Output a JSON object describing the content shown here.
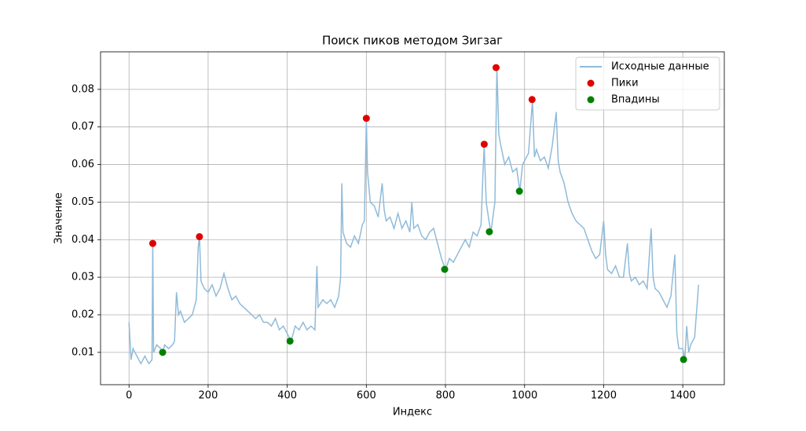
{
  "chart_data": {
    "type": "line",
    "title": "Поиск пиков методом Зигзаг",
    "xlabel": "Индекс",
    "ylabel": "Значение",
    "xlim": [
      -72,
      1505
    ],
    "ylim": [
      0.0014,
      0.09
    ],
    "xticks": [
      0,
      200,
      400,
      600,
      800,
      1000,
      1200,
      1400
    ],
    "yticks": [
      0.01,
      0.02,
      0.03,
      0.04,
      0.05,
      0.06,
      0.07,
      0.08
    ],
    "grid": true,
    "legend": "upper right",
    "series": [
      {
        "name": "Исходные данные",
        "type": "line",
        "color": "#8fbbd9",
        "x": [
          0,
          5,
          10,
          20,
          30,
          40,
          50,
          58,
          60,
          62,
          70,
          80,
          85,
          90,
          100,
          110,
          115,
          120,
          125,
          130,
          140,
          150,
          160,
          170,
          175,
          178,
          182,
          190,
          200,
          210,
          220,
          230,
          240,
          250,
          260,
          270,
          280,
          290,
          300,
          310,
          320,
          330,
          340,
          350,
          360,
          370,
          380,
          390,
          400,
          410,
          420,
          430,
          440,
          450,
          460,
          470,
          475,
          478,
          490,
          500,
          510,
          520,
          530,
          535,
          538,
          541,
          550,
          560,
          570,
          580,
          590,
          595,
          600,
          603,
          610,
          620,
          630,
          640,
          645,
          650,
          660,
          670,
          680,
          690,
          700,
          710,
          715,
          720,
          730,
          740,
          750,
          760,
          770,
          780,
          790,
          800,
          810,
          820,
          830,
          840,
          850,
          860,
          870,
          880,
          890,
          895,
          898,
          903,
          910,
          915,
          920,
          925,
          930,
          935,
          940,
          950,
          960,
          970,
          980,
          988,
          995,
          1000,
          1010,
          1020,
          1025,
          1030,
          1040,
          1050,
          1060,
          1070,
          1080,
          1085,
          1090,
          1100,
          1110,
          1120,
          1130,
          1140,
          1150,
          1160,
          1170,
          1180,
          1190,
          1200,
          1205,
          1210,
          1220,
          1230,
          1240,
          1250,
          1260,
          1265,
          1270,
          1280,
          1290,
          1300,
          1310,
          1320,
          1325,
          1330,
          1340,
          1350,
          1360,
          1370,
          1380,
          1385,
          1390,
          1400,
          1405,
          1410,
          1415,
          1420,
          1430,
          1440
        ],
        "values": [
          0.018,
          0.008,
          0.011,
          0.009,
          0.007,
          0.009,
          0.007,
          0.008,
          0.039,
          0.01,
          0.012,
          0.011,
          0.01,
          0.012,
          0.011,
          0.012,
          0.013,
          0.026,
          0.02,
          0.021,
          0.018,
          0.019,
          0.02,
          0.024,
          0.038,
          0.041,
          0.029,
          0.027,
          0.026,
          0.028,
          0.025,
          0.027,
          0.031,
          0.027,
          0.024,
          0.025,
          0.023,
          0.022,
          0.021,
          0.02,
          0.019,
          0.02,
          0.018,
          0.018,
          0.017,
          0.019,
          0.016,
          0.017,
          0.015,
          0.013,
          0.017,
          0.016,
          0.018,
          0.016,
          0.017,
          0.016,
          0.033,
          0.022,
          0.024,
          0.023,
          0.024,
          0.022,
          0.025,
          0.03,
          0.055,
          0.042,
          0.039,
          0.038,
          0.041,
          0.039,
          0.044,
          0.045,
          0.072,
          0.058,
          0.05,
          0.049,
          0.046,
          0.055,
          0.048,
          0.045,
          0.046,
          0.043,
          0.047,
          0.043,
          0.045,
          0.042,
          0.05,
          0.043,
          0.044,
          0.041,
          0.04,
          0.042,
          0.043,
          0.039,
          0.035,
          0.032,
          0.035,
          0.034,
          0.036,
          0.038,
          0.04,
          0.038,
          0.042,
          0.041,
          0.044,
          0.058,
          0.065,
          0.05,
          0.045,
          0.042,
          0.046,
          0.05,
          0.086,
          0.068,
          0.065,
          0.06,
          0.062,
          0.058,
          0.059,
          0.053,
          0.06,
          0.061,
          0.063,
          0.077,
          0.062,
          0.064,
          0.061,
          0.062,
          0.059,
          0.065,
          0.074,
          0.061,
          0.058,
          0.055,
          0.05,
          0.047,
          0.045,
          0.044,
          0.043,
          0.04,
          0.037,
          0.035,
          0.036,
          0.045,
          0.036,
          0.032,
          0.031,
          0.033,
          0.03,
          0.03,
          0.039,
          0.031,
          0.029,
          0.03,
          0.028,
          0.029,
          0.027,
          0.043,
          0.03,
          0.027,
          0.026,
          0.024,
          0.022,
          0.025,
          0.036,
          0.015,
          0.011,
          0.011,
          0.008,
          0.017,
          0.01,
          0.012,
          0.014,
          0.028
        ]
      },
      {
        "name": "Пики",
        "type": "scatter",
        "color": "#e00000",
        "x": [
          60,
          178,
          600,
          898,
          928,
          1019
        ],
        "values": [
          0.039,
          0.0408,
          0.0723,
          0.0654,
          0.0858,
          0.0773
        ]
      },
      {
        "name": "Впадины",
        "type": "scatter",
        "color": "#008000",
        "x": [
          85,
          407,
          798,
          911,
          987,
          1402
        ],
        "values": [
          0.01,
          0.013,
          0.0321,
          0.0421,
          0.0529,
          0.0081
        ]
      }
    ]
  }
}
